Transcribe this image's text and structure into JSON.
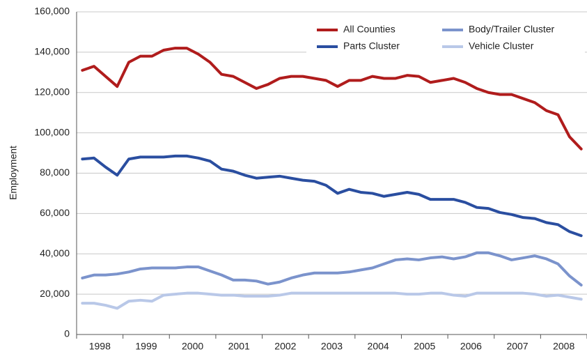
{
  "chart_data": {
    "type": "line",
    "y_label": "Employment",
    "categories": [
      null,
      "1998",
      null,
      null,
      null,
      "1999",
      null,
      null,
      null,
      "2000",
      null,
      null,
      null,
      "2001",
      null,
      null,
      null,
      "2002",
      null,
      null,
      null,
      "2003",
      null,
      null,
      null,
      "2004",
      null,
      null,
      null,
      "2005",
      null,
      null,
      null,
      "2006",
      null,
      null,
      null,
      "2007",
      null,
      null,
      null,
      "2008",
      null,
      null
    ],
    "series": [
      {
        "name": "All Counties",
        "color": "#b01c1c",
        "values": [
          131000,
          133000,
          128000,
          123000,
          135000,
          138000,
          138000,
          141000,
          142000,
          142000,
          139000,
          135000,
          129000,
          128000,
          125000,
          122000,
          124000,
          127000,
          128000,
          128000,
          127000,
          126000,
          123000,
          126000,
          126000,
          128000,
          127000,
          127000,
          128500,
          128000,
          125000,
          126000,
          127000,
          125000,
          122000,
          120000,
          119000,
          119000,
          117000,
          115000,
          111000,
          109000,
          98000,
          92000
        ]
      },
      {
        "name": "Parts Cluster",
        "color": "#2a4ea0",
        "values": [
          87000,
          87500,
          83000,
          79000,
          87000,
          88000,
          88000,
          88000,
          88500,
          88500,
          87500,
          86000,
          82000,
          81000,
          79000,
          77500,
          78000,
          78500,
          77500,
          76500,
          76000,
          74000,
          70000,
          72000,
          70500,
          70000,
          68500,
          69500,
          70500,
          69500,
          67000,
          67000,
          67000,
          65500,
          63000,
          62500,
          60500,
          59500,
          58000,
          57500,
          55500,
          54500,
          51000,
          49000
        ]
      },
      {
        "name": "Body/Trailer Cluster",
        "color": "#7b93cc",
        "values": [
          28000,
          29500,
          29500,
          30000,
          31000,
          32500,
          33000,
          33000,
          33000,
          33500,
          33500,
          31500,
          29500,
          27000,
          27000,
          26500,
          25000,
          26000,
          28000,
          29500,
          30500,
          30500,
          30500,
          31000,
          32000,
          33000,
          35000,
          37000,
          37500,
          37000,
          38000,
          38500,
          37500,
          38500,
          40500,
          40500,
          39000,
          37000,
          38000,
          39000,
          37500,
          35000,
          29000,
          24500
        ]
      },
      {
        "name": "Vehicle Cluster",
        "color": "#b9c8e8",
        "values": [
          15500,
          15500,
          14500,
          13000,
          16500,
          17000,
          16500,
          19500,
          20000,
          20500,
          20500,
          20000,
          19500,
          19500,
          19000,
          19000,
          19000,
          19500,
          20500,
          20500,
          20500,
          20500,
          20500,
          20500,
          20500,
          20500,
          20500,
          20500,
          20000,
          20000,
          20500,
          20500,
          19500,
          19000,
          20500,
          20500,
          20500,
          20500,
          20500,
          20000,
          19000,
          19500,
          18500,
          17500
        ]
      }
    ],
    "ylim": [
      0,
      160000
    ],
    "yticks": [
      0,
      {
        "value": 20000,
        "label": "20,000"
      },
      {
        "value": 40000,
        "label": "40,000"
      },
      {
        "value": 60000,
        "label": "60,000"
      },
      {
        "value": 80000,
        "label": "80,000"
      },
      {
        "value": 100000,
        "label": "100,000"
      },
      {
        "value": 120000,
        "label": "120,000"
      },
      {
        "value": 140000,
        "label": "140,000"
      },
      {
        "value": 160000,
        "label": "160,000"
      }
    ],
    "grid": true,
    "legend": "top-right"
  }
}
